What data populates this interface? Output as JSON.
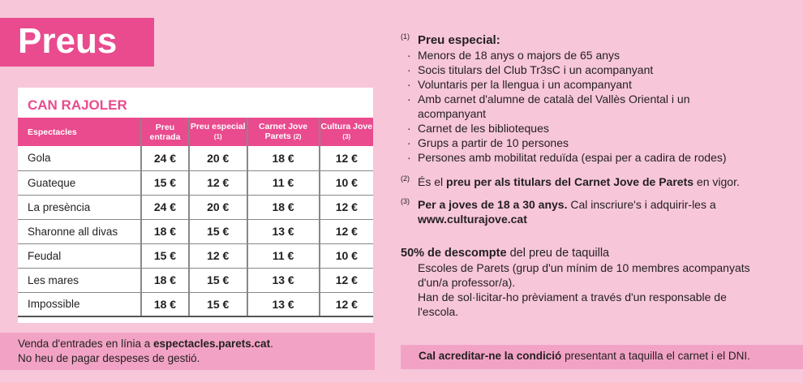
{
  "title": "Preus",
  "venue": "CAN RAJOLER",
  "table": {
    "headers": [
      {
        "main": "Espectacles",
        "note": ""
      },
      {
        "main": "Preu entrada",
        "note": ""
      },
      {
        "main": "Preu especial",
        "note": "(1)"
      },
      {
        "main": "Carnet Jove Parets",
        "note": "(2)"
      },
      {
        "main": "Cultura Jove",
        "note": "(3)"
      }
    ],
    "rows": [
      [
        "Gola",
        "24 €",
        "20 €",
        "18 €",
        "12 €"
      ],
      [
        "Guateque",
        "15 €",
        "12 €",
        "11 €",
        "10 €"
      ],
      [
        "La presència",
        "24 €",
        "20 €",
        "18 €",
        "12 €"
      ],
      [
        "Sharonne all divas",
        "18 €",
        "15 €",
        "13 €",
        "12 €"
      ],
      [
        "Feudal",
        "15 €",
        "12 €",
        "11 €",
        "10 €"
      ],
      [
        "Les mares",
        "18 €",
        "15 €",
        "13 €",
        "12 €"
      ],
      [
        "Impossible",
        "18 €",
        "15 €",
        "13 €",
        "12 €"
      ]
    ]
  },
  "sales": {
    "prefix": "Venda d'entrades en línia a ",
    "link": "espectacles.parets.cat",
    "suffix": ".",
    "line2": "No heu de pagar despeses de gestió."
  },
  "notes": {
    "n1": {
      "mark": "(1)",
      "title": "Preu especial:",
      "items": [
        "Menors de 18 anys o majors de 65 anys",
        "Socis titulars del Club Tr3sC i un acompanyant",
        "Voluntaris per la llengua i un acompanyant",
        "Amb carnet d'alumne de català del Vallès Oriental i un acompanyant",
        "Carnet de les biblioteques",
        "Grups a partir de 10 persones",
        "Persones amb mobilitat reduïda (espai per a cadira de rodes)"
      ]
    },
    "n2": {
      "mark": "(2)",
      "pre": "És el ",
      "bold": "preu per als titulars del Carnet Jove de Parets",
      "post": " en vigor."
    },
    "n3": {
      "mark": "(3)",
      "bold": "Per a joves de 18 a 30 anys.",
      "post": " Cal inscriure's i adquirir-les a ",
      "link": "www.culturajove.cat"
    },
    "discount": {
      "bold": "50% de descompte",
      "post": " del preu de taquilla",
      "lines": [
        "Escoles de Parets (grup d'un mínim de 10 membres acompanyats d'un/a professor/a).",
        "Han de sol·licitar-ho prèviament a través d'un responsable de l'escola."
      ]
    }
  },
  "condition": {
    "bold": "Cal acreditar-ne la condició",
    "post": " presentant a taquilla el carnet i el DNI."
  },
  "colors": {
    "accent": "#e94b8e",
    "background": "#f7c6d9",
    "box": "#f2a3c5"
  }
}
